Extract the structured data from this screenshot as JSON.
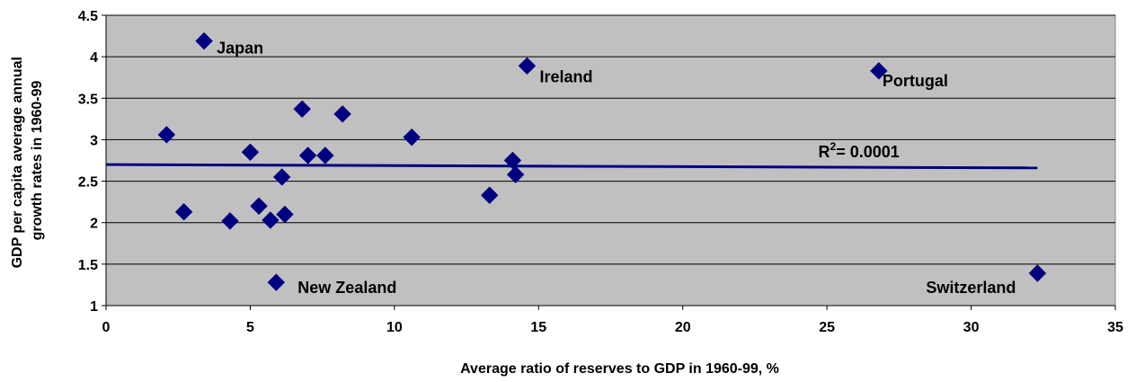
{
  "chart_data": {
    "type": "scatter",
    "title": "",
    "xlabel": "Average ratio of reserves to GDP in 1960-99, %",
    "ylabel_lines": [
      "GDP per capita average annual",
      "growth rates in 1960-99"
    ],
    "xlim": [
      0,
      35
    ],
    "ylim": [
      1,
      4.5
    ],
    "x_ticks": [
      0,
      5,
      10,
      15,
      20,
      25,
      30,
      35
    ],
    "y_ticks": [
      1,
      1.5,
      2,
      2.5,
      3,
      3.5,
      4,
      4.5
    ],
    "grid": "horizontal",
    "plot_background": "#c0c0c0",
    "marker_color": "#000080",
    "trendline_color": "#000080",
    "points": [
      {
        "x": 3.4,
        "y": 4.19,
        "label": "Japan"
      },
      {
        "x": 14.6,
        "y": 3.89,
        "label": "Ireland"
      },
      {
        "x": 26.8,
        "y": 3.83,
        "label": "Portugal"
      },
      {
        "x": 2.1,
        "y": 3.06,
        "label": ""
      },
      {
        "x": 6.8,
        "y": 3.37,
        "label": ""
      },
      {
        "x": 8.2,
        "y": 3.31,
        "label": ""
      },
      {
        "x": 10.6,
        "y": 3.03,
        "label": ""
      },
      {
        "x": 5.0,
        "y": 2.85,
        "label": ""
      },
      {
        "x": 7.0,
        "y": 2.81,
        "label": ""
      },
      {
        "x": 7.6,
        "y": 2.81,
        "label": ""
      },
      {
        "x": 14.1,
        "y": 2.75,
        "label": ""
      },
      {
        "x": 14.2,
        "y": 2.58,
        "label": ""
      },
      {
        "x": 6.1,
        "y": 2.55,
        "label": ""
      },
      {
        "x": 13.3,
        "y": 2.33,
        "label": ""
      },
      {
        "x": 2.7,
        "y": 2.13,
        "label": ""
      },
      {
        "x": 5.3,
        "y": 2.2,
        "label": ""
      },
      {
        "x": 6.2,
        "y": 2.1,
        "label": ""
      },
      {
        "x": 4.3,
        "y": 2.02,
        "label": ""
      },
      {
        "x": 5.7,
        "y": 2.03,
        "label": ""
      },
      {
        "x": 5.9,
        "y": 1.28,
        "label": "New Zealand"
      },
      {
        "x": 32.3,
        "y": 1.39,
        "label": "Switzerland"
      }
    ],
    "trendline": {
      "x": [
        0,
        32.3
      ],
      "y": [
        2.7,
        2.66
      ]
    },
    "r_squared_text": "= 0.0001",
    "r_squared_base": "R",
    "r_squared_sup": "2"
  }
}
